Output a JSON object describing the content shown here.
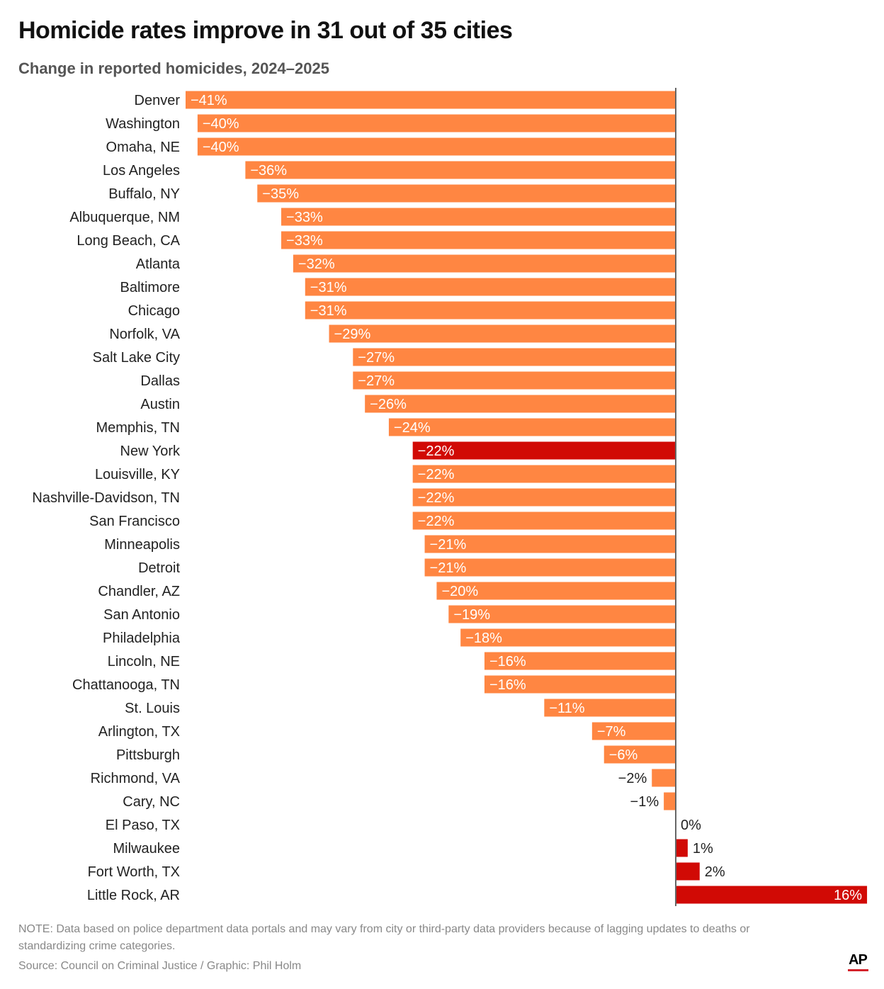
{
  "chart_data": {
    "type": "bar",
    "orientation": "horizontal",
    "title": "Homicide rates improve in 31 out of 35 cities",
    "subtitle": "Change in reported homicides, 2024–2025",
    "unit": "%",
    "xlim": [
      -41,
      16
    ],
    "grid": false,
    "colors": {
      "decrease": "#FF8642",
      "highlight": "#D10A05"
    },
    "categories": [
      "Denver",
      "Washington",
      "Omaha, NE",
      "Los Angeles",
      "Buffalo, NY",
      "Albuquerque, NM",
      "Long Beach, CA",
      "Atlanta",
      "Baltimore",
      "Chicago",
      "Norfolk, VA",
      "Salt Lake City",
      "Dallas",
      "Austin",
      "Memphis, TN",
      "New York",
      "Louisville, KY",
      "Nashville-Davidson, TN",
      "San Francisco",
      "Minneapolis",
      "Detroit",
      "Chandler, AZ",
      "San Antonio",
      "Philadelphia",
      "Lincoln, NE",
      "Chattanooga, TN",
      "St. Louis",
      "Arlington, TX",
      "Pittsburgh",
      "Richmond, VA",
      "Cary, NC",
      "El Paso, TX",
      "Milwaukee",
      "Fort Worth, TX",
      "Little Rock, AR"
    ],
    "values": [
      -41,
      -40,
      -40,
      -36,
      -35,
      -33,
      -33,
      -32,
      -31,
      -31,
      -29,
      -27,
      -27,
      -26,
      -24,
      -22,
      -22,
      -22,
      -22,
      -21,
      -21,
      -20,
      -19,
      -18,
      -16,
      -16,
      -11,
      -7,
      -6,
      -2,
      -1,
      0,
      1,
      2,
      16
    ],
    "labels": [
      "−41%",
      "−40%",
      "−40%",
      "−36%",
      "−35%",
      "−33%",
      "−33%",
      "−32%",
      "−31%",
      "−31%",
      "−29%",
      "−27%",
      "−27%",
      "−26%",
      "−24%",
      "−22%",
      "−22%",
      "−22%",
      "−22%",
      "−21%",
      "−21%",
      "−20%",
      "−19%",
      "−18%",
      "−16%",
      "−16%",
      "−11%",
      "−7%",
      "−6%",
      "−2%",
      "−1%",
      "0%",
      "1%",
      "2%",
      "16%"
    ],
    "highlighted": [
      "New York",
      "Milwaukee",
      "Fort Worth, TX",
      "Little Rock, AR"
    ]
  },
  "footer": {
    "note": "NOTE: Data based on police department data portals and may vary from city or third-party data providers because of lagging updates to deaths or standardizing crime categories.",
    "source": "Source: Council on Criminal Justice / Graphic: Phil Holm",
    "logo": "AP"
  }
}
